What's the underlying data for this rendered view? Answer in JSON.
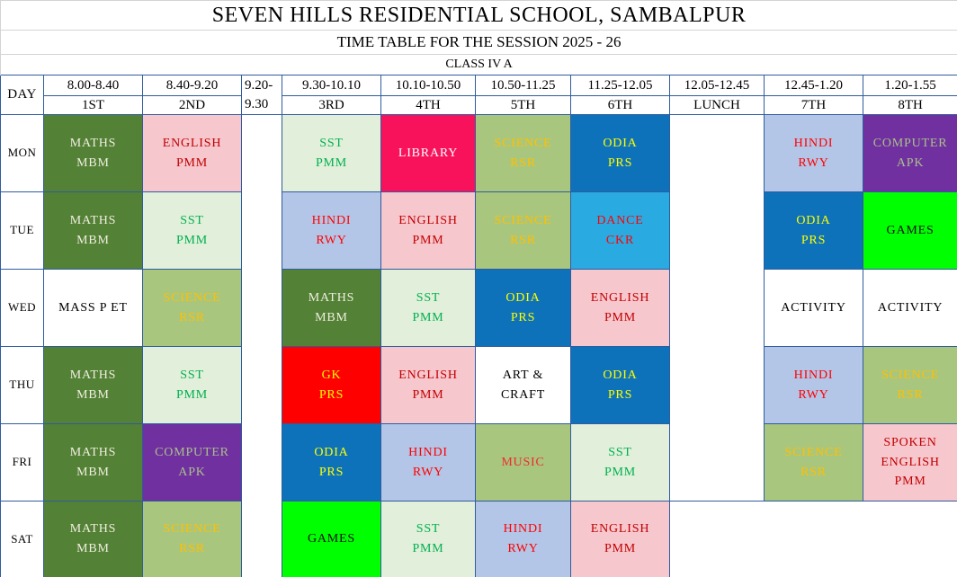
{
  "header": {
    "title": "SEVEN HILLS RESIDENTIAL SCHOOL, SAMBALPUR",
    "subtitle": "TIME TABLE FOR THE SESSION 2025 - 26",
    "class_label": "CLASS IV A",
    "day_col_label": "DAY"
  },
  "columns": [
    {
      "time": "8.00-8.40",
      "period": "1ST",
      "type": "period"
    },
    {
      "time": "8.40-9.20",
      "period": "2ND",
      "type": "period"
    },
    {
      "time": "9.20-9.30",
      "period": "",
      "type": "break"
    },
    {
      "time": "9.30-10.10",
      "period": "3RD",
      "type": "period"
    },
    {
      "time": "10.10-10.50",
      "period": "4TH",
      "type": "period"
    },
    {
      "time": "10.50-11.25",
      "period": "5TH",
      "type": "period"
    },
    {
      "time": "11.25-12.05",
      "period": "6TH",
      "type": "period"
    },
    {
      "time": "12.05-12.45",
      "period": "LUNCH",
      "type": "lunch"
    },
    {
      "time": "12.45-1.20",
      "period": "7TH",
      "type": "period"
    },
    {
      "time": "1.20-1.55",
      "period": "8TH",
      "type": "period"
    }
  ],
  "colors": {
    "grid_border": "#2F5C9E",
    "title_border": "#D4D4D4",
    "page_bg": "#FFFFFF"
  },
  "palette": {
    "maths": {
      "bg": "#538135",
      "fg": "#EFEEE0"
    },
    "english": {
      "bg": "#F7C7CE",
      "fg": "#C00000"
    },
    "sst": {
      "bg": "#E2EFDA",
      "fg": "#00B050"
    },
    "science": {
      "bg": "#A9C67F",
      "fg": "#FFC000"
    },
    "odia": {
      "bg": "#0E72BA",
      "fg": "#FFFF00"
    },
    "hindi": {
      "bg": "#B4C6E7",
      "fg": "#FF0000"
    },
    "computer": {
      "bg": "#7030A0",
      "fg": "#A9C08C"
    },
    "library": {
      "bg": "#F8125C",
      "fg": "#FFFFFF"
    },
    "dance": {
      "bg": "#29ABE2",
      "fg": "#FF0000"
    },
    "games": {
      "bg": "#00FF00",
      "fg": "#101010"
    },
    "gk": {
      "bg": "#FF0000",
      "fg": "#FFFF00"
    },
    "music": {
      "bg": "#A9C67F",
      "fg": "#EE2C2C"
    },
    "plain": {
      "bg": "#FFFFFF",
      "fg": "#000000"
    }
  },
  "days": [
    {
      "label": "MON",
      "periods": [
        {
          "lines": [
            "MATHS",
            "MBM"
          ],
          "style": "maths"
        },
        {
          "lines": [
            "ENGLISH",
            "PMM"
          ],
          "style": "english"
        },
        {
          "lines": [
            "SST",
            "PMM"
          ],
          "style": "sst"
        },
        {
          "lines": [
            "LIBRARY"
          ],
          "style": "library"
        },
        {
          "lines": [
            "SCIENCE",
            "RSR"
          ],
          "style": "science"
        },
        {
          "lines": [
            "ODIA",
            "PRS"
          ],
          "style": "odia"
        },
        {
          "lines": [
            "HINDI",
            "RWY"
          ],
          "style": "hindi"
        },
        {
          "lines": [
            "COMPUTER",
            "APK"
          ],
          "style": "computer"
        }
      ]
    },
    {
      "label": "TUE",
      "periods": [
        {
          "lines": [
            "MATHS",
            "MBM"
          ],
          "style": "maths"
        },
        {
          "lines": [
            "SST",
            "PMM"
          ],
          "style": "sst"
        },
        {
          "lines": [
            "HINDI",
            "RWY"
          ],
          "style": "hindi"
        },
        {
          "lines": [
            "ENGLISH",
            "PMM"
          ],
          "style": "english"
        },
        {
          "lines": [
            "SCIENCE",
            "RSR"
          ],
          "style": "science"
        },
        {
          "lines": [
            "DANCE",
            "CKR"
          ],
          "style": "dance"
        },
        {
          "lines": [
            "ODIA",
            "PRS"
          ],
          "style": "odia"
        },
        {
          "lines": [
            "GAMES"
          ],
          "style": "games"
        }
      ]
    },
    {
      "label": "WED",
      "periods": [
        {
          "lines": [
            "MASS P ET"
          ],
          "style": "plain"
        },
        {
          "lines": [
            "SCIENCE",
            "RSR"
          ],
          "style": "science"
        },
        {
          "lines": [
            "MATHS",
            "MBM"
          ],
          "style": "maths"
        },
        {
          "lines": [
            "SST",
            "PMM"
          ],
          "style": "sst"
        },
        {
          "lines": [
            "ODIA",
            "PRS"
          ],
          "style": "odia"
        },
        {
          "lines": [
            "ENGLISH",
            "PMM"
          ],
          "style": "english"
        },
        {
          "lines": [
            "ACTIVITY"
          ],
          "style": "plain"
        },
        {
          "lines": [
            "ACTIVITY"
          ],
          "style": "plain"
        }
      ]
    },
    {
      "label": "THU",
      "periods": [
        {
          "lines": [
            "MATHS",
            "MBM"
          ],
          "style": "maths"
        },
        {
          "lines": [
            "SST",
            "PMM"
          ],
          "style": "sst"
        },
        {
          "lines": [
            "GK",
            "PRS"
          ],
          "style": "gk"
        },
        {
          "lines": [
            "ENGLISH",
            "PMM"
          ],
          "style": "english"
        },
        {
          "lines": [
            "ART &",
            "CRAFT"
          ],
          "style": "plain"
        },
        {
          "lines": [
            "ODIA",
            "PRS"
          ],
          "style": "odia"
        },
        {
          "lines": [
            "HINDI",
            "RWY"
          ],
          "style": "hindi"
        },
        {
          "lines": [
            "SCIENCE",
            "RSR"
          ],
          "style": "science"
        }
      ]
    },
    {
      "label": "FRI",
      "periods": [
        {
          "lines": [
            "MATHS",
            "MBM"
          ],
          "style": "maths"
        },
        {
          "lines": [
            "COMPUTER",
            "APK"
          ],
          "style": "computer"
        },
        {
          "lines": [
            "ODIA",
            "PRS"
          ],
          "style": "odia"
        },
        {
          "lines": [
            "HINDI",
            "RWY"
          ],
          "style": "hindi"
        },
        {
          "lines": [
            "MUSIC"
          ],
          "style": "music"
        },
        {
          "lines": [
            "SST",
            "PMM"
          ],
          "style": "sst"
        },
        {
          "lines": [
            "SCIENCE",
            "RSR"
          ],
          "style": "science"
        },
        {
          "lines": [
            "SPOKEN",
            "ENGLISH",
            "PMM"
          ],
          "style": "english"
        }
      ]
    },
    {
      "label": "SAT",
      "periods": [
        {
          "lines": [
            "MATHS",
            "MBM"
          ],
          "style": "maths"
        },
        {
          "lines": [
            "SCIENCE",
            "RSR"
          ],
          "style": "science"
        },
        {
          "lines": [
            "GAMES"
          ],
          "style": "games"
        },
        {
          "lines": [
            "SST",
            "PMM"
          ],
          "style": "sst"
        },
        {
          "lines": [
            "HINDI",
            "RWY"
          ],
          "style": "hindi"
        },
        {
          "lines": [
            "ENGLISH",
            "PMM"
          ],
          "style": "english"
        }
      ]
    }
  ]
}
